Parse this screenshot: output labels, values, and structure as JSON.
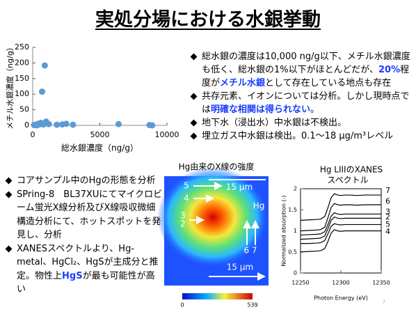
{
  "title": "実処分場における水銀挙動",
  "chart_data": [
    {
      "type": "scatter",
      "xlabel": "総水銀濃度（ng/g）",
      "ylabel": "メチル水銀濃度（ng/g）",
      "color": "#5b9bd5",
      "x": [
        900,
        700,
        1000,
        100,
        200,
        300,
        400,
        500,
        600,
        800,
        1200,
        1800,
        2200,
        2500,
        3000,
        6400,
        8700,
        8900
      ],
      "values": [
        192,
        108,
        12,
        1,
        2,
        0,
        5,
        3,
        8,
        3,
        4,
        2,
        3,
        5,
        2,
        4,
        1,
        0
      ],
      "xlim": [
        0,
        10000
      ],
      "xticks": [
        0,
        5000,
        10000
      ],
      "ylim": [
        0,
        250
      ],
      "yticks": [
        0,
        50,
        100,
        150,
        200,
        250
      ]
    },
    {
      "type": "line",
      "title": "Hg LIIIのXANES",
      "subtitle": "スペクトル",
      "xlabel": "Photon Energy (eV)",
      "ylabel": "Normalized absorption (-)",
      "x": [
        12250,
        12260,
        12270,
        12275,
        12280,
        12284,
        12288,
        12292,
        12296,
        12300,
        12305,
        12310,
        12320,
        12330,
        12340,
        12350
      ],
      "series": [
        {
          "name": "7",
          "color": "#000000",
          "values": [
            1.25,
            1.26,
            1.27,
            1.28,
            1.34,
            1.55,
            1.79,
            1.88,
            1.85,
            1.84,
            1.85,
            1.85,
            1.84,
            1.85,
            1.85,
            1.85
          ]
        },
        {
          "name": "6",
          "color": "#000000",
          "values": [
            1.0,
            1.01,
            1.02,
            1.03,
            1.09,
            1.31,
            1.56,
            1.65,
            1.62,
            1.61,
            1.62,
            1.62,
            1.61,
            1.62,
            1.62,
            1.62
          ]
        },
        {
          "name": "3",
          "color": "#000000",
          "values": [
            0.9,
            0.91,
            0.92,
            0.93,
            0.98,
            1.15,
            1.35,
            1.43,
            1.4,
            1.39,
            1.4,
            1.4,
            1.4,
            1.4,
            1.4,
            1.4
          ]
        },
        {
          "name": "2",
          "color": "#000000",
          "values": [
            0.8,
            0.81,
            0.82,
            0.83,
            0.88,
            1.05,
            1.25,
            1.33,
            1.3,
            1.29,
            1.3,
            1.3,
            1.3,
            1.3,
            1.3,
            1.3
          ]
        },
        {
          "name": "5",
          "color": "#000000",
          "values": [
            0.7,
            0.7,
            0.71,
            0.72,
            0.77,
            0.93,
            1.11,
            1.17,
            1.15,
            1.14,
            1.15,
            1.15,
            1.15,
            1.15,
            1.15,
            1.15
          ]
        },
        {
          "name": "4",
          "color": "#000000",
          "values": [
            0.5,
            0.51,
            0.52,
            0.53,
            0.58,
            0.75,
            0.95,
            1.03,
            1.0,
            0.99,
            1.0,
            1.0,
            1.0,
            1.0,
            1.0,
            1.0
          ]
        }
      ],
      "xlim": [
        12250,
        12350
      ],
      "xticks": [
        12250,
        12300,
        12350
      ],
      "ylim": [
        0,
        2
      ],
      "yticks": [
        0,
        0.5,
        1,
        1.5,
        2
      ]
    }
  ],
  "notes_right": [
    [
      "総水銀の濃度は10,000 ng/g以下、メチル水銀濃度も低く、総水銀の1%以下がほとんどだが、",
      {
        "text": "20%",
        "color": "#1a3cff"
      },
      "程度が",
      {
        "text": "メチル水銀",
        "color": "#1a3cff"
      },
      "として存在している地点も存在"
    ],
    [
      "共存元素、イオンについては分析。しかし現時点では",
      {
        "text": "明確な相関は得られない",
        "color": "#1a3cff"
      },
      "。"
    ],
    [
      "地下水（浸出水）中水銀は不検出。"
    ],
    [
      "埋立ガス中水銀は検出。0.1～18 μg/m³レベル"
    ]
  ],
  "notes_left": [
    [
      "コアサンプル中のHgの形態を分析"
    ],
    [
      "SPring-8　BL37XUにてマイクロビーム蛍光X線分析及びX線吸収微細構造分析にて、ホットスポットを発見し、分析"
    ],
    [
      "XANESスペクトルより、Hg-metal、HgCl₂、HgSが主成分と推定。物性上",
      {
        "text": "HgS",
        "color": "#1a3cff"
      },
      "が最も可能性が高い"
    ]
  ],
  "heatmap": {
    "title": "Hg由来のX線の強度",
    "labels": [
      "5",
      "4",
      "3",
      "2",
      "Hg",
      "6 7"
    ],
    "scale_labels": [
      "15 μm",
      "15 μm"
    ],
    "colorbar": [
      0,
      539
    ]
  },
  "page_number": "7"
}
